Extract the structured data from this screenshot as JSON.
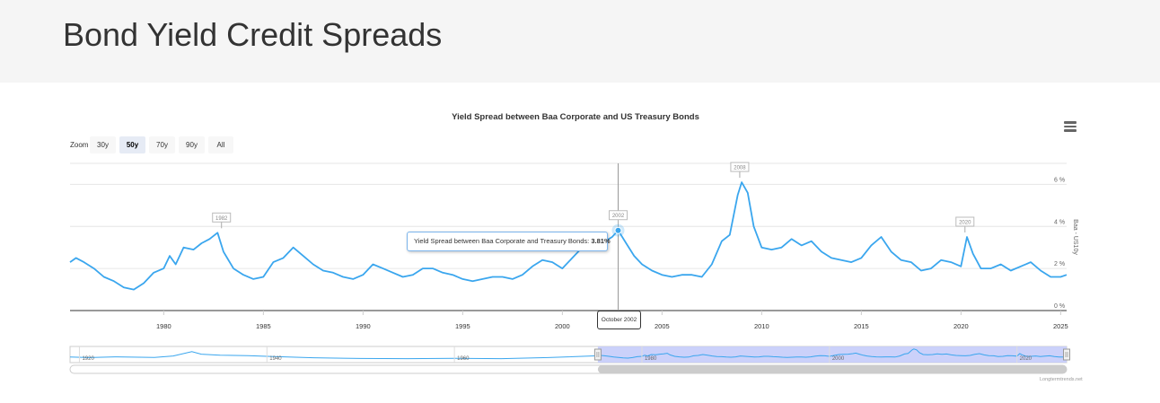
{
  "page": {
    "title": "Bond Yield Credit Spreads"
  },
  "menu_icon": "hamburger-menu-icon",
  "zoom": {
    "label": "Zoom",
    "buttons": [
      "30y",
      "50y",
      "70y",
      "90y",
      "All"
    ],
    "active": "50y"
  },
  "tooltip": {
    "prefix": "Yield Spread between Baa Corporate and Treasury Bonds: ",
    "value": "3.81%"
  },
  "crosshair": {
    "label": "October 2002"
  },
  "credits": "Longtermtrends.net",
  "colors": {
    "line": "#3aa6ee",
    "navigator_fill": "#c5ccf9",
    "scrollbar": "#cccccc",
    "grid": "#e6e6e6"
  },
  "chart_data": {
    "type": "line",
    "title": "Yield Spread between Baa Corporate and US Treasury Bonds",
    "ylabel": "Baa - US10y",
    "ylim": [
      0,
      7
    ],
    "yticks": [
      "0 %",
      "2 %",
      "4 %",
      "6 %"
    ],
    "xticks": [
      "1980",
      "1985",
      "1990",
      "1995",
      "2000",
      "2005",
      "2010",
      "2015",
      "2020",
      "2025"
    ],
    "xrange": [
      1975.3,
      2025.3
    ],
    "series": [
      {
        "x": [
          1975.3,
          1975.6,
          1976.0,
          1976.5,
          1977.0,
          1977.5,
          1978.0,
          1978.5,
          1979.0,
          1979.5,
          1980.0,
          1980.3,
          1980.6,
          1981.0,
          1981.5,
          1981.9,
          1982.3,
          1982.7,
          1983.0,
          1983.5,
          1984.0,
          1984.5,
          1985.0,
          1985.5,
          1986.0,
          1986.5,
          1987.0,
          1987.5,
          1988.0,
          1988.5,
          1989.0,
          1989.5,
          1990.0,
          1990.5,
          1991.0,
          1991.5,
          1992.0,
          1992.5,
          1993.0,
          1993.5,
          1994.0,
          1994.5,
          1995.0,
          1995.5,
          1996.0,
          1996.5,
          1997.0,
          1997.5,
          1998.0,
          1998.5,
          1999.0,
          1999.5,
          2000.0,
          2000.5,
          2001.0,
          2001.5,
          2002.0,
          2002.5,
          2002.8,
          2003.2,
          2003.6,
          2004.0,
          2004.5,
          2005.0,
          2005.5,
          2006.0,
          2006.5,
          2007.0,
          2007.5,
          2008.0,
          2008.4,
          2008.8,
          2009.0,
          2009.3,
          2009.6,
          2010.0,
          2010.5,
          2011.0,
          2011.5,
          2012.0,
          2012.5,
          2013.0,
          2013.5,
          2014.0,
          2014.5,
          2015.0,
          2015.5,
          2016.0,
          2016.5,
          2017.0,
          2017.5,
          2018.0,
          2018.5,
          2019.0,
          2019.5,
          2020.0,
          2020.3,
          2020.6,
          2021.0,
          2021.5,
          2022.0,
          2022.5,
          2023.0,
          2023.5,
          2024.0,
          2024.5,
          2025.0,
          2025.3
        ],
        "y": [
          2.3,
          2.5,
          2.3,
          2.0,
          1.6,
          1.4,
          1.1,
          1.0,
          1.3,
          1.8,
          2.0,
          2.6,
          2.2,
          3.0,
          2.9,
          3.2,
          3.4,
          3.7,
          2.8,
          2.0,
          1.7,
          1.5,
          1.6,
          2.3,
          2.5,
          3.0,
          2.6,
          2.2,
          1.9,
          1.8,
          1.6,
          1.5,
          1.7,
          2.2,
          2.0,
          1.8,
          1.6,
          1.7,
          2.0,
          2.0,
          1.8,
          1.7,
          1.5,
          1.4,
          1.5,
          1.6,
          1.6,
          1.5,
          1.7,
          2.1,
          2.4,
          2.3,
          2.0,
          2.5,
          3.0,
          3.1,
          3.2,
          3.5,
          3.81,
          3.2,
          2.6,
          2.2,
          1.9,
          1.7,
          1.6,
          1.7,
          1.7,
          1.6,
          2.2,
          3.3,
          3.6,
          5.5,
          6.1,
          5.6,
          4.0,
          3.0,
          2.9,
          3.0,
          3.4,
          3.1,
          3.3,
          2.8,
          2.5,
          2.4,
          2.3,
          2.5,
          3.1,
          3.5,
          2.8,
          2.4,
          2.3,
          1.9,
          2.0,
          2.4,
          2.3,
          2.1,
          3.5,
          2.7,
          2.0,
          2.0,
          2.2,
          1.9,
          2.1,
          2.3,
          1.9,
          1.6,
          1.6,
          1.7
        ]
      }
    ],
    "flags": [
      {
        "label": "1982",
        "x": 1982.9,
        "y": 3.7
      },
      {
        "label": "2002",
        "x": 2002.8,
        "y": 3.81
      },
      {
        "label": "2008",
        "x": 2008.9,
        "y": 6.1
      },
      {
        "label": "2020",
        "x": 2020.2,
        "y": 3.5
      }
    ],
    "navigator": {
      "xticks": [
        "1920",
        "1940",
        "1960",
        "1980",
        "2000",
        "2020"
      ],
      "xrange": [
        1919.0,
        2025.3
      ],
      "selection": [
        1975.3,
        2025.3
      ]
    }
  }
}
